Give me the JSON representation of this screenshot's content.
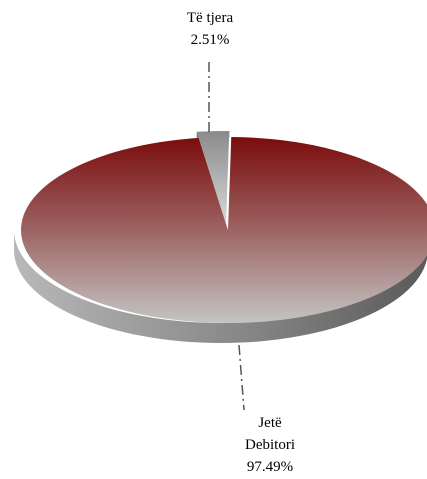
{
  "chart_data": {
    "type": "pie",
    "title": "",
    "slices": [
      {
        "label": "Të tjera",
        "value": 2.51,
        "value_label": "2.51%",
        "color": "#a8a8a8"
      },
      {
        "label": "Jetë Debitori",
        "label_lines": [
          "Jetë",
          "Debitori"
        ],
        "value": 97.49,
        "value_label": "97.49%",
        "color": "#8b1010"
      }
    ],
    "style": {
      "three_d": true,
      "gradient_top": "#7a0e0e",
      "gradient_bottom": "#c0c0c0",
      "exploded_slice": "Të tjera"
    }
  }
}
